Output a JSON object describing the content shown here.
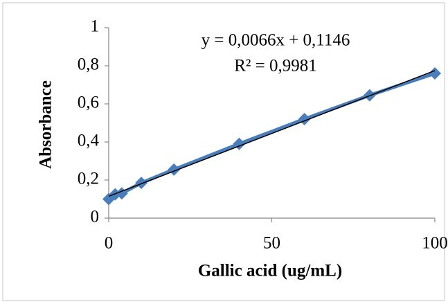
{
  "chart_data": {
    "type": "scatter-line",
    "x_label": "Gallic acid (ug/mL)",
    "y_label": "Absorbance",
    "x": [
      0,
      2,
      4,
      10,
      20,
      40,
      60,
      80,
      100
    ],
    "series": [
      {
        "color": "#4a7ebb",
        "values": [
          0.1,
          0.125,
          0.13,
          0.185,
          0.255,
          0.39,
          0.52,
          0.645,
          0.76
        ]
      }
    ],
    "trendline": {
      "slope": 0.0066,
      "intercept": 0.1146,
      "color": "#000000",
      "equation": "y = 0,0066x + 0,1146",
      "r2_label": "R² = 0,9981"
    },
    "xlim": [
      0,
      100
    ],
    "xticks": [
      0,
      50,
      100
    ],
    "ylim": [
      0,
      1
    ],
    "yticks": [
      0,
      {
        "value": 0.2,
        "label": "0,2"
      },
      {
        "value": 0.4,
        "label": "0,4"
      },
      {
        "value": 0.6,
        "label": "0,6"
      },
      {
        "value": 0.8,
        "label": "0,8"
      },
      1
    ],
    "grid": false
  }
}
